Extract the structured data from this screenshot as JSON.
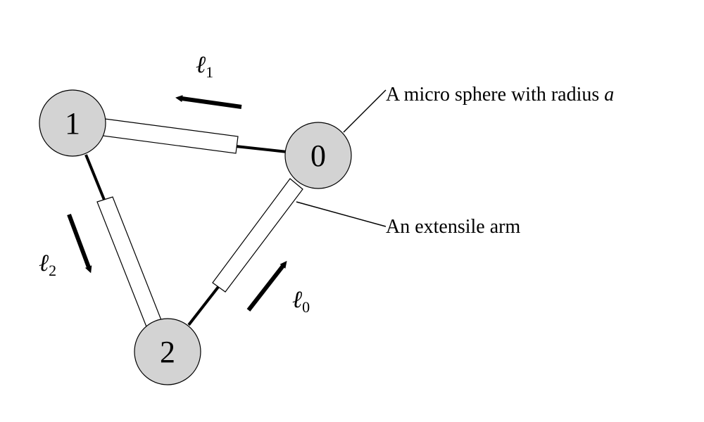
{
  "spheres": [
    {
      "id": "0",
      "label": "0"
    },
    {
      "id": "1",
      "label": "1"
    },
    {
      "id": "2",
      "label": "2"
    }
  ],
  "arm_lengths": [
    {
      "symbol": "ℓ",
      "subscript": "0"
    },
    {
      "symbol": "ℓ",
      "subscript": "1"
    },
    {
      "symbol": "ℓ",
      "subscript": "2"
    }
  ],
  "callouts": {
    "sphere": {
      "text": "A micro sphere with radius ",
      "variable": "a"
    },
    "arm": {
      "text": "An extensile arm"
    }
  },
  "colors": {
    "sphere_fill": "#d3d3d3",
    "stroke": "#000000",
    "sheath_fill": "#ffffff",
    "background": "#ffffff"
  }
}
